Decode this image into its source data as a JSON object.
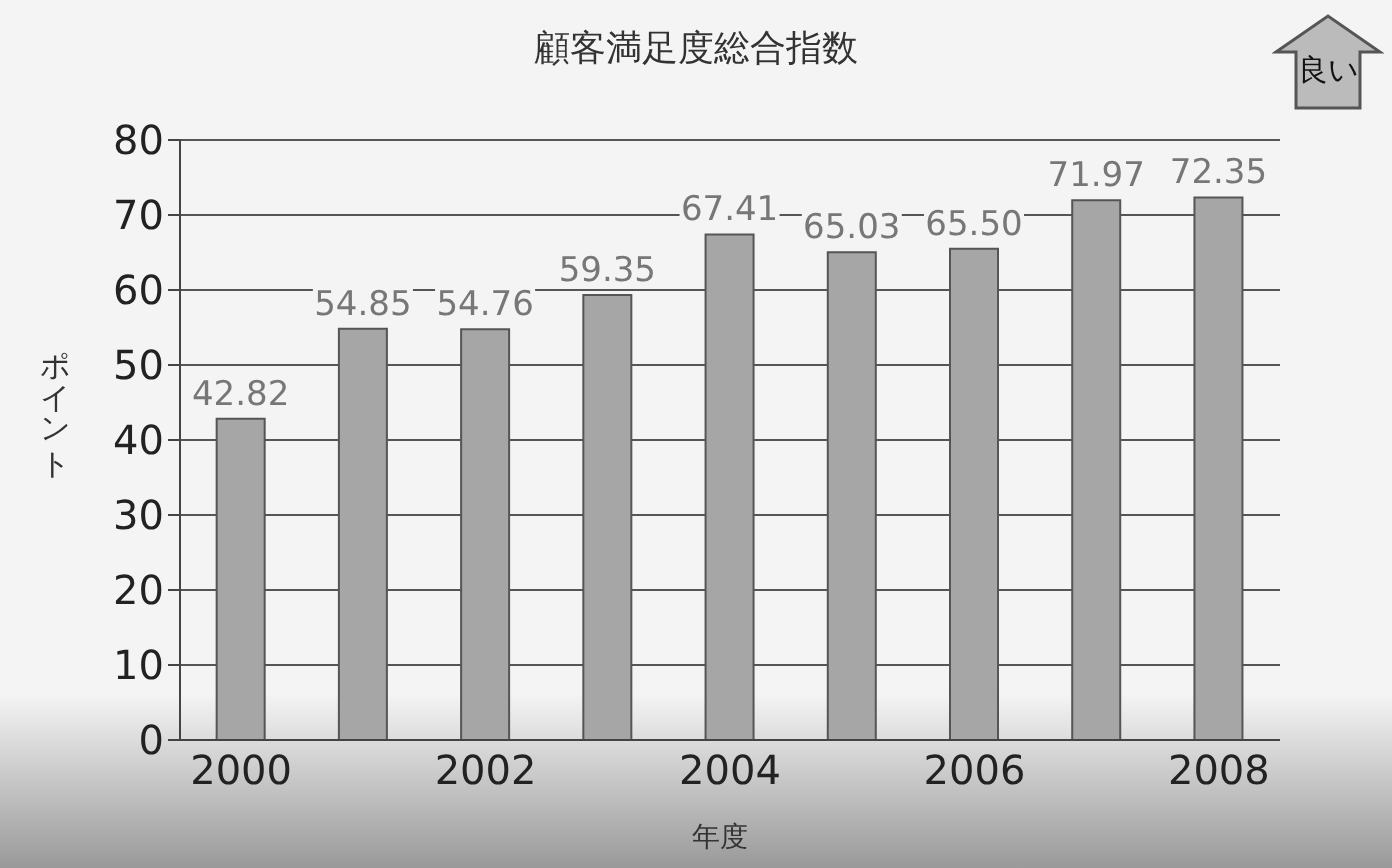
{
  "chart_data": {
    "type": "bar",
    "title": "顧客満足度総合指数",
    "xlabel": "年度",
    "ylabel": "ポイント",
    "categories": [
      "2000",
      null,
      "2002",
      null,
      "2004",
      null,
      "2006",
      null,
      "2008"
    ],
    "values": [
      42.82,
      54.85,
      54.76,
      59.35,
      67.41,
      65.03,
      65.5,
      71.97,
      72.35
    ],
    "value_labels": [
      "42.82",
      "54.85",
      "54.76",
      "59.35",
      "67.41",
      "65.03",
      "65.50",
      "71.97",
      "72.35"
    ],
    "color": "#a6a6a6",
    "ylim": [
      0,
      80
    ],
    "yticks": [
      0,
      10,
      20,
      30,
      40,
      50,
      60,
      70,
      80
    ],
    "grid": "y",
    "annotations": [
      "良い"
    ]
  }
}
